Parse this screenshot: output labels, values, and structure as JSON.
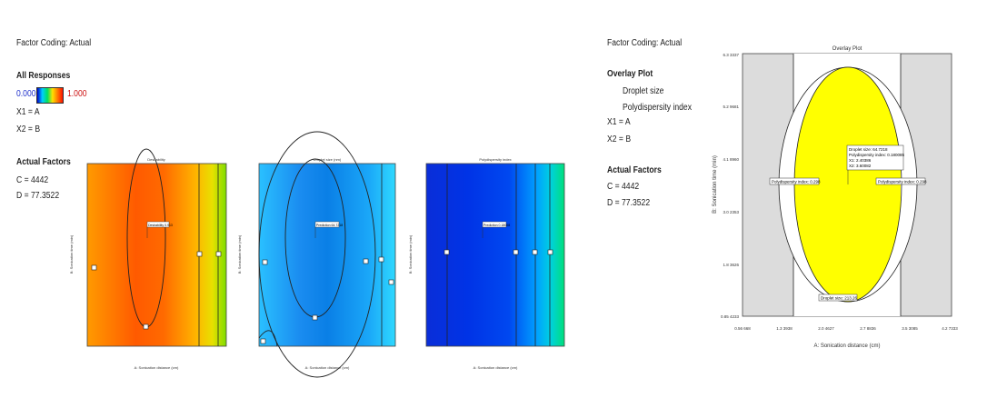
{
  "left_panel": {
    "factor_coding": "Factor Coding: Actual",
    "all_responses": "All Responses",
    "scale_min": "0.000",
    "scale_max": "1.000",
    "x1": "X1 = A",
    "x2": "X2 = B",
    "actual_factors": "Actual Factors",
    "c_value": "C = 4442",
    "d_value": "D = 77.3522"
  },
  "right_panel": {
    "factor_coding": "Factor Coding: Actual",
    "overlay_plot": "Overlay Plot",
    "resp1": "Droplet size",
    "resp2": "Polydispersity index",
    "x1": "X1 = A",
    "x2": "X2 = B",
    "actual_factors": "Actual Factors",
    "c_value": "C = 4442",
    "d_value": "D = 77.3522"
  },
  "colors": {
    "desirability_center": "#ff5a00",
    "desirability_edge": "#ffb000",
    "desirability_green": "#80dd00",
    "droplet_center": "#0a7fe6",
    "droplet_edge": "#28c8ff",
    "pdi_dark": "#0033e0",
    "pdi_light": "#00e07a",
    "overlay_yellow": "#ffff00",
    "overlay_gray": "#dcdcdc"
  },
  "chart_data": [
    {
      "type": "heatmap",
      "title": "Desirability",
      "xlabel": "A: Sonication distance (cm)",
      "ylabel": "B: Sonication time (min)",
      "flag_label": "Desirability 0.913"
    },
    {
      "type": "heatmap",
      "title": "Droplet size (nm)",
      "xlabel": "A: Sonication distance (cm)",
      "ylabel": "B: Sonication time (min)",
      "flag_label": "Prediction 64.7218"
    },
    {
      "type": "heatmap",
      "title": "Polydispersity index",
      "xlabel": "A: Sonication distance (cm)",
      "ylabel": "B: Sonication time (min)",
      "flag_label": "Prediction 0.18008"
    },
    {
      "type": "area",
      "title": "Overlay Plot",
      "xlabel": "A: Sonication distance (cm)",
      "ylabel": "B: Sonication time (min)",
      "x_ticks": [
        "0.56 668",
        "1.3 3938",
        "2.0 4627",
        "2.7 8836",
        "3.5 3085",
        "4.2 7333"
      ],
      "y_ticks": [
        "0.85 4233",
        "1.8 3626",
        "3.0 2353",
        "4.1 8960",
        "5.2 9681",
        "6.3 3337"
      ],
      "flag_label_center": [
        "Droplet size: 64.7218",
        "Polydispersity index: 0.180085",
        "X1: 2.40386",
        "X2: 3.60082"
      ],
      "flag_label_left": "Polydispersity index: 0.298",
      "flag_label_right": "Polydispersity index: 0.298",
      "flag_label_bottom": "Droplet size: 213.26"
    }
  ]
}
